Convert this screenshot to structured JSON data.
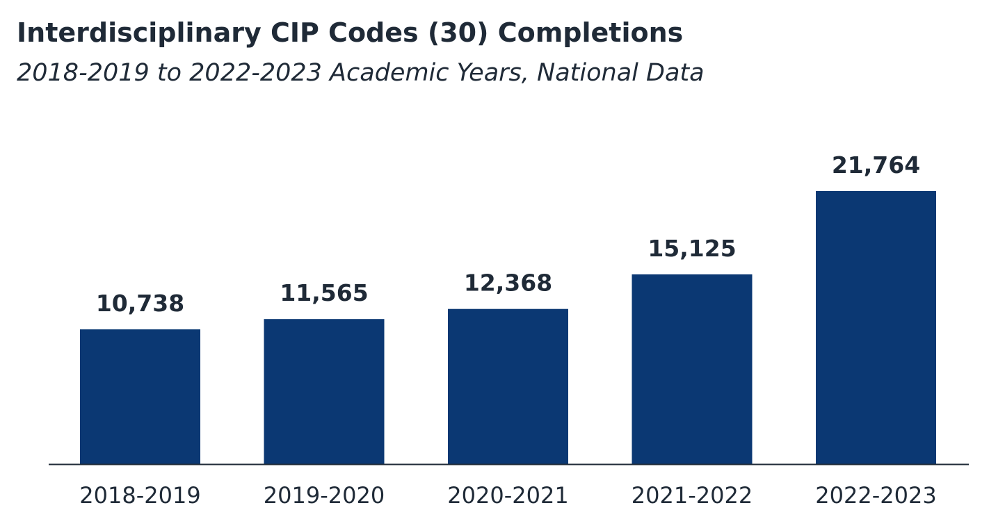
{
  "title": "Interdisciplinary CIP Codes (30) Completions",
  "subtitle": "2018-2019 to 2022-2023 Academic Years, National Data",
  "colors": {
    "bar": "#0b3873",
    "text": "#1f2a37",
    "axis": "#1f2a37"
  },
  "chart_data": {
    "type": "bar",
    "title": "Interdisciplinary CIP Codes (30) Completions",
    "subtitle": "2018-2019 to 2022-2023 Academic Years, National Data",
    "categories": [
      "2018-2019",
      "2019-2020",
      "2020-2021",
      "2021-2022",
      "2022-2023"
    ],
    "values": [
      10738,
      11565,
      12368,
      15125,
      21764
    ],
    "data_labels": [
      "10,738",
      "11,565",
      "12,368",
      "15,125",
      "21,764"
    ],
    "xlabel": "",
    "ylabel": "",
    "ylim": [
      0,
      21764
    ],
    "grid": false,
    "legend": "none",
    "y_axis_visible": false
  }
}
